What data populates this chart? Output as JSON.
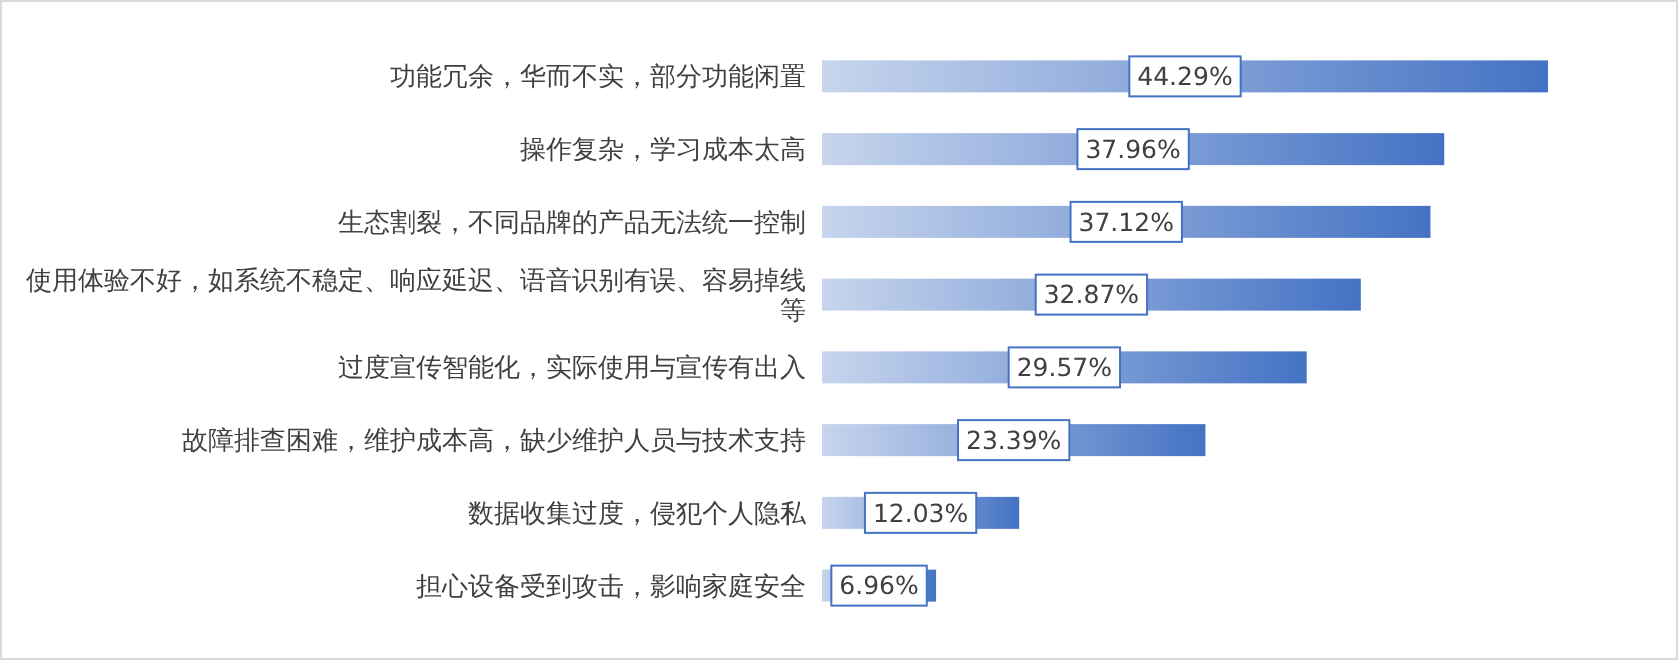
{
  "chart_data": {
    "type": "bar",
    "orientation": "horizontal",
    "categories": [
      "功能冗余，华而不实，部分功能闲置",
      "操作复杂，学习成本太高",
      "生态割裂，不同品牌的产品无法统一控制",
      "使用体验不好，如系统不稳定、响应延迟、语音识别有误、容易掉线等",
      "过度宣传智能化，实际使用与宣传有出入",
      "故障排查困难，维护成本高，缺少维护人员与技术支持",
      "数据收集过度，侵犯个人隐私",
      "担心设备受到攻击，影响家庭安全"
    ],
    "values": [
      44.29,
      37.96,
      37.12,
      32.87,
      29.57,
      23.39,
      12.03,
      6.96
    ],
    "value_labels": [
      "44.29%",
      "37.96%",
      "37.12%",
      "32.87%",
      "29.57%",
      "23.39%",
      "12.03%",
      "6.96%"
    ],
    "color": "#4472c4"
  }
}
